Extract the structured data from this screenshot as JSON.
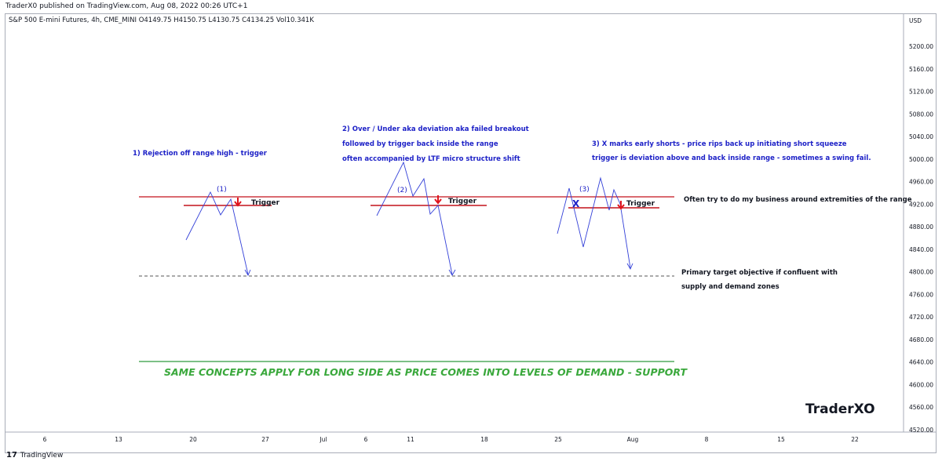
{
  "header": {
    "published": "TraderX0 published on TradingView.com, Aug 08, 2022 00:26 UTC+1",
    "symbol_line": "S&P 500 E-mini Futures, 4h, CME_MINI  O4149.75  H4150.75  L4130.75  C4134.25  Vol10.341K"
  },
  "footer": {
    "brand": "TradingView",
    "logo": "17"
  },
  "watermark": "TraderXO",
  "chart_data": {
    "type": "line",
    "price_axis": {
      "currency": "USD",
      "ylim": [
        4512,
        5254
      ],
      "ticks": [
        "5200.00",
        "5160.00",
        "5120.00",
        "5080.00",
        "5040.00",
        "5000.00",
        "4960.00",
        "4920.00",
        "4880.00",
        "4840.00",
        "4800.00",
        "4760.00",
        "4720.00",
        "4680.00",
        "4640.00",
        "4600.00",
        "4560.00",
        "4520.00"
      ]
    },
    "time_axis": {
      "labels": [
        "6",
        "13",
        "20",
        "27",
        "Jul",
        "6",
        "11",
        "18",
        "25",
        "Aug",
        "8",
        "15",
        "22"
      ]
    },
    "levels": [
      {
        "name": "range-high",
        "price": 4930,
        "color": "#c3121b"
      },
      {
        "name": "target",
        "price": 4793,
        "color": "#555555",
        "style": "dashed"
      },
      {
        "name": "demand",
        "price": 4638,
        "color": "#2e9a3e"
      }
    ],
    "annotations": [
      {
        "text": "1) Rejection off range high - trigger",
        "color": "#1e22c7"
      },
      {
        "text": "2) Over / Under aka deviation aka failed breakout",
        "color": "#1e22c7"
      },
      {
        "text": "followed by trigger back inside the range",
        "color": "#1e22c7"
      },
      {
        "text": "often accompanied by LTF micro structure shift",
        "color": "#1e22c7"
      },
      {
        "text": "3) X marks early shorts - price rips back up initiating short squeeze",
        "color": "#1e22c7"
      },
      {
        "text": "trigger is deviation above and back inside range - sometimes a swing fail.",
        "color": "#1e22c7"
      },
      {
        "text": "Often try to do my business around extremities of the range",
        "color": "#131722"
      },
      {
        "text": "Primary target objective if confluent with",
        "color": "#131722"
      },
      {
        "text": "supply and demand zones",
        "color": "#131722"
      },
      {
        "text": "SAME CONCEPTS APPLY FOR LONG SIDE AS PRICE COMES INTO LEVELS OF DEMAND - SUPPORT",
        "color": "#3aa83c"
      }
    ],
    "setups": [
      {
        "label": "(1)",
        "trigger": "Trigger"
      },
      {
        "label": "(2)",
        "trigger": "Trigger"
      },
      {
        "label": "(3)",
        "trigger": "Trigger",
        "mark": "X"
      }
    ]
  }
}
